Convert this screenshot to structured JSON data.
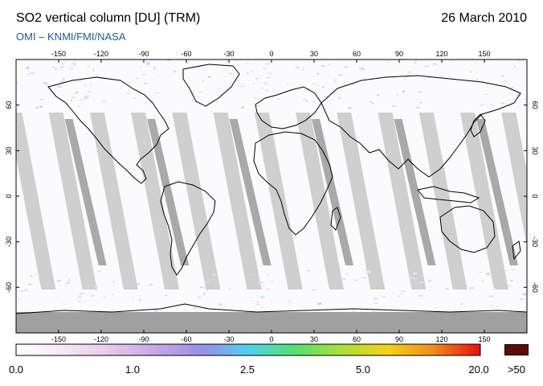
{
  "header": {
    "title": "SO2 vertical column [DU] (TRM)",
    "date": "26 March 2010",
    "subtitle": "OMI  –  KNMI/FMI/NASA"
  },
  "map": {
    "projection": "equirectangular",
    "lon_range": [
      -180,
      180
    ],
    "lat_range": [
      -90,
      90
    ],
    "lon_ticks": [
      -150,
      -120,
      -90,
      -60,
      -30,
      0,
      30,
      60,
      90,
      120,
      150
    ],
    "lat_ticks": [
      60,
      30,
      0,
      -30,
      -60
    ],
    "gap_color": "#cfcfcf",
    "overlap_color": "#a9a9a9",
    "no_data_color": "#a0a0a0",
    "coastline_color": "#000000"
  },
  "colorbar": {
    "labels": [
      "0.0",
      "1.0",
      "2.5",
      "5.0",
      "20.0",
      ">50"
    ],
    "colors": [
      "#ffffff",
      "#f6e9f6",
      "#e8c9ea",
      "#c9a6e6",
      "#9b8fe6",
      "#4fd0f0",
      "#55e06e",
      "#a8e03a",
      "#f2d21a",
      "#f08a1a",
      "#e41010"
    ],
    "overflow_color": "#5c0a0a"
  }
}
